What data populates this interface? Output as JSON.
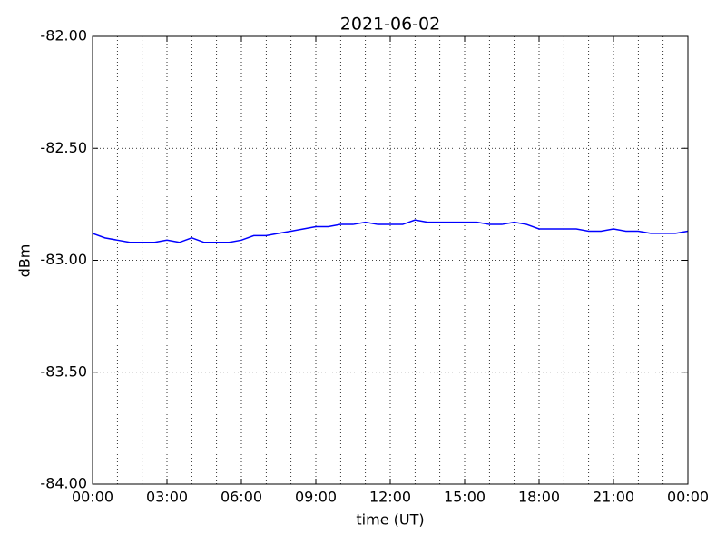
{
  "chart_data": {
    "type": "line",
    "title": "2021-06-02",
    "x_label": "time (UT)",
    "y_label": "dBm",
    "x": [
      0,
      0.5,
      1,
      1.5,
      2,
      2.5,
      3,
      3.5,
      4,
      4.5,
      5,
      5.5,
      6,
      6.5,
      7,
      7.5,
      8,
      8.5,
      9,
      9.5,
      10,
      10.5,
      11,
      11.5,
      12,
      12.5,
      13,
      13.5,
      14,
      14.5,
      15,
      15.5,
      16,
      16.5,
      17,
      17.5,
      18,
      18.5,
      19,
      19.5,
      20,
      20.5,
      21,
      21.5,
      22,
      22.5,
      23,
      23.5,
      24
    ],
    "series": [
      {
        "name": "dBm",
        "color": "#0000ff",
        "values": [
          -82.88,
          -82.9,
          -82.91,
          -82.92,
          -82.92,
          -82.92,
          -82.91,
          -82.92,
          -82.9,
          -82.92,
          -82.92,
          -82.92,
          -82.91,
          -82.89,
          -82.89,
          -82.88,
          -82.87,
          -82.86,
          -82.85,
          -82.85,
          -82.84,
          -82.84,
          -82.83,
          -82.84,
          -82.84,
          -82.84,
          -82.82,
          -82.83,
          -82.83,
          -82.83,
          -82.83,
          -82.83,
          -82.84,
          -82.84,
          -82.83,
          -82.84,
          -82.86,
          -82.86,
          -82.86,
          -82.86,
          -82.87,
          -82.87,
          -82.86,
          -82.87,
          -82.87,
          -82.88,
          -82.88,
          -82.88,
          -82.87
        ]
      }
    ],
    "xlim": [
      0,
      24
    ],
    "ylim": [
      -84,
      -82
    ],
    "xticks": [
      {
        "value": 0,
        "label": "00:00"
      },
      {
        "value": 3,
        "label": "03:00"
      },
      {
        "value": 6,
        "label": "06:00"
      },
      {
        "value": 9,
        "label": "09:00"
      },
      {
        "value": 12,
        "label": "12:00"
      },
      {
        "value": 15,
        "label": "15:00"
      },
      {
        "value": 18,
        "label": "18:00"
      },
      {
        "value": 21,
        "label": "21:00"
      },
      {
        "value": 24,
        "label": "00:00"
      }
    ],
    "x_minor_ticks": [
      1,
      2,
      4,
      5,
      7,
      8,
      10,
      11,
      13,
      14,
      16,
      17,
      19,
      20,
      22,
      23
    ],
    "yticks": [
      {
        "value": -84,
        "label": "-84.00"
      },
      {
        "value": -83.5,
        "label": "-83.50"
      },
      {
        "value": -83,
        "label": "-83.00"
      },
      {
        "value": -82.5,
        "label": "-82.50"
      },
      {
        "value": -82,
        "label": "-82.00"
      }
    ],
    "grid": true
  }
}
